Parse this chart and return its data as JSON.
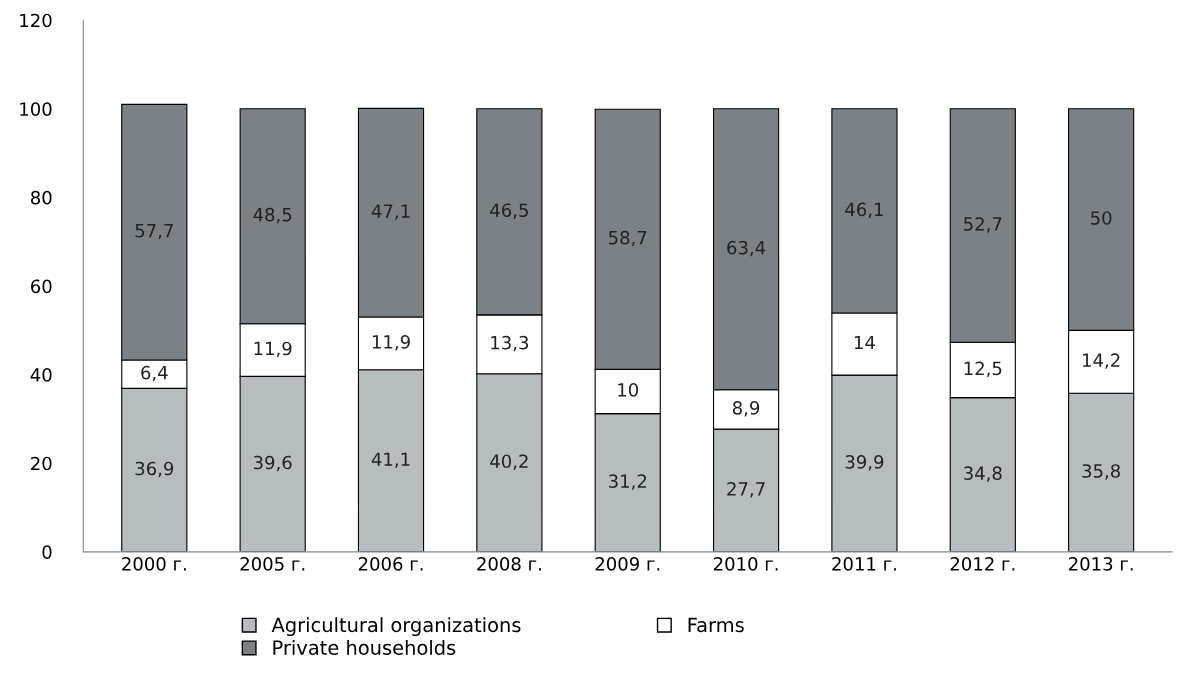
{
  "chart_data": {
    "type": "bar",
    "stacked": true,
    "categories": [
      "2000 г.",
      "2005 г.",
      "2006 г.",
      "2008 г.",
      "2009 г.",
      "2010 г.",
      "2011 г.",
      "2012 г.",
      "2013 г."
    ],
    "series": [
      {
        "name": "Agricultural organizations",
        "color": "#b7bcbf",
        "values": [
          36.9,
          39.6,
          41.1,
          40.2,
          31.2,
          27.7,
          39.9,
          34.8,
          35.8
        ],
        "value_labels": [
          "36,9",
          "39,6",
          "41,1",
          "40,2",
          "31,2",
          "27,7",
          "39,9",
          "34,8",
          "35,8"
        ]
      },
      {
        "name": "Farms",
        "color": "#ffffff",
        "values": [
          6.4,
          11.9,
          11.9,
          13.3,
          10,
          8.9,
          14,
          12.5,
          14.2
        ],
        "value_labels": [
          "6,4",
          "11,9",
          "11,9",
          "13,3",
          "10",
          "8,9",
          "14",
          "12,5",
          "14,2"
        ]
      },
      {
        "name": "Private households",
        "color": "#7b8184",
        "values": [
          57.7,
          48.5,
          47.1,
          46.5,
          58.7,
          63.4,
          46.1,
          52.7,
          50
        ],
        "value_labels": [
          "57,7",
          "48,5",
          "47,1",
          "46,5",
          "58,7",
          "63,4",
          "46,1",
          "52,7",
          "50"
        ]
      }
    ],
    "ylim": [
      0,
      120
    ],
    "yticks": [
      0,
      20,
      40,
      60,
      80,
      100,
      120
    ],
    "grid": false,
    "legend": "bottom"
  }
}
